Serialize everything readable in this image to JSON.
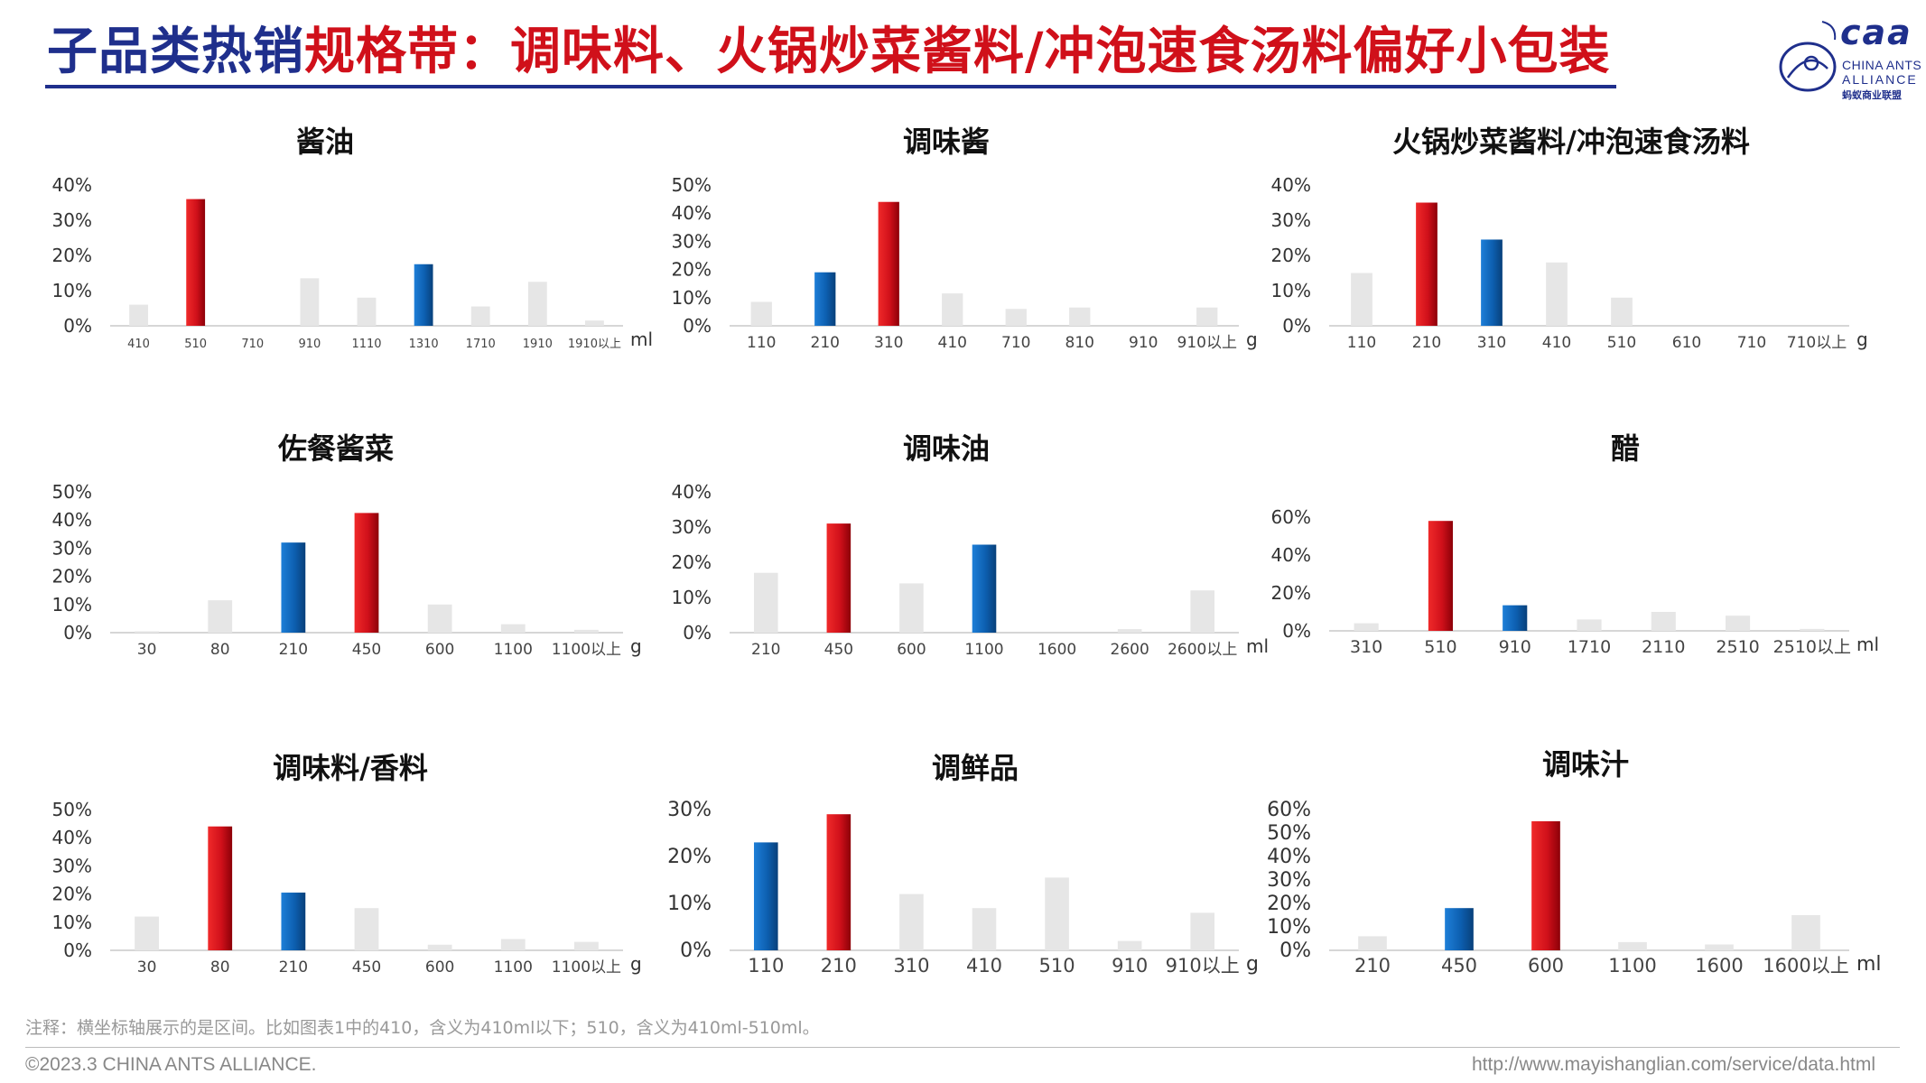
{
  "header": {
    "title_part1": "子品类热销",
    "title_part2": "规格带：调味料、火锅炒菜酱料/冲泡速食汤料偏好小包装"
  },
  "logo": {
    "text_caa": "caa",
    "line1": "CHINA ANTS",
    "line2": "ALLIANCE",
    "line3": "蚂蚁商业联盟"
  },
  "colors": {
    "red": "#d0101a",
    "blue": "#0d5fb0",
    "gray": "#e6e6e6",
    "navy": "#1f2f8c"
  },
  "chart_data": [
    {
      "type": "bar",
      "title": "酱油",
      "unit": "ml",
      "categories": [
        "410",
        "510",
        "710",
        "910",
        "1110",
        "1310",
        "1710",
        "1910",
        "1910以上"
      ],
      "values": [
        6,
        36,
        0,
        13.5,
        8,
        17.5,
        5.5,
        12.5,
        1.5
      ],
      "highlight": [
        "gray",
        "red",
        "gray",
        "gray",
        "gray",
        "blue",
        "gray",
        "gray",
        "gray"
      ],
      "yticks": [
        0,
        10,
        20,
        30,
        40
      ],
      "ylim": [
        0,
        40
      ]
    },
    {
      "type": "bar",
      "title": "调味酱",
      "unit": "g",
      "categories": [
        "110",
        "210",
        "310",
        "410",
        "710",
        "810",
        "910",
        "910以上"
      ],
      "values": [
        8.5,
        19,
        44,
        11.5,
        6,
        6.5,
        0,
        6.5
      ],
      "highlight": [
        "gray",
        "blue",
        "red",
        "gray",
        "gray",
        "gray",
        "gray",
        "gray"
      ],
      "yticks": [
        0,
        10,
        20,
        30,
        40,
        50
      ],
      "ylim": [
        0,
        50
      ]
    },
    {
      "type": "bar",
      "title": "火锅炒菜酱料/冲泡速食汤料",
      "unit": "g",
      "categories": [
        "110",
        "210",
        "310",
        "410",
        "510",
        "610",
        "710",
        "710以上"
      ],
      "values": [
        15,
        35,
        24.5,
        18,
        8,
        0,
        0,
        0
      ],
      "highlight": [
        "gray",
        "red",
        "blue",
        "gray",
        "gray",
        "gray",
        "gray",
        "gray"
      ],
      "yticks": [
        0,
        10,
        20,
        30,
        40
      ],
      "ylim": [
        0,
        40
      ]
    },
    {
      "type": "bar",
      "title": "佐餐酱菜",
      "unit": "g",
      "categories": [
        "30",
        "80",
        "210",
        "450",
        "600",
        "1100",
        "1100以上"
      ],
      "values": [
        0.5,
        11.5,
        32,
        42.5,
        10,
        3,
        1
      ],
      "highlight": [
        "gray",
        "gray",
        "blue",
        "red",
        "gray",
        "gray",
        "gray"
      ],
      "yticks": [
        0,
        10,
        20,
        30,
        40,
        50
      ],
      "ylim": [
        0,
        50
      ]
    },
    {
      "type": "bar",
      "title": "调味油",
      "unit": "ml",
      "categories": [
        "210",
        "450",
        "600",
        "1100",
        "1600",
        "2600",
        "2600以上"
      ],
      "values": [
        17,
        31,
        14,
        25,
        0,
        1,
        12
      ],
      "highlight": [
        "gray",
        "red",
        "gray",
        "blue",
        "gray",
        "gray",
        "gray"
      ],
      "yticks": [
        0,
        10,
        20,
        30,
        40
      ],
      "ylim": [
        0,
        40
      ]
    },
    {
      "type": "bar",
      "title": "醋",
      "unit": "ml",
      "categories": [
        "310",
        "510",
        "910",
        "1710",
        "2110",
        "2510",
        "2510以上"
      ],
      "values": [
        4,
        58,
        13.5,
        6,
        10,
        8,
        1
      ],
      "highlight": [
        "gray",
        "red",
        "blue",
        "gray",
        "gray",
        "gray",
        "gray"
      ],
      "yticks": [
        0,
        20,
        40,
        60
      ],
      "ylim": [
        0,
        60
      ]
    },
    {
      "type": "bar",
      "title": "调味料/香料",
      "unit": "g",
      "categories": [
        "30",
        "80",
        "210",
        "450",
        "600",
        "1100",
        "1100以上"
      ],
      "values": [
        12,
        44,
        20.5,
        15,
        2,
        4,
        3
      ],
      "highlight": [
        "gray",
        "red",
        "blue",
        "gray",
        "gray",
        "gray",
        "gray"
      ],
      "yticks": [
        0,
        10,
        20,
        30,
        40,
        50
      ],
      "ylim": [
        0,
        50
      ]
    },
    {
      "type": "bar",
      "title": "调鲜品",
      "unit": "g",
      "categories": [
        "110",
        "210",
        "310",
        "410",
        "510",
        "910",
        "910以上"
      ],
      "values": [
        23,
        29,
        12,
        9,
        15.5,
        2,
        8
      ],
      "highlight": [
        "blue",
        "red",
        "gray",
        "gray",
        "gray",
        "gray",
        "gray"
      ],
      "yticks": [
        0,
        10,
        20,
        30
      ],
      "ylim": [
        0,
        30
      ]
    },
    {
      "type": "bar",
      "title": "调味汁",
      "unit": "ml",
      "categories": [
        "210",
        "450",
        "600",
        "1100",
        "1600",
        "1600以上"
      ],
      "values": [
        6,
        18,
        55,
        3.5,
        2.5,
        15
      ],
      "highlight": [
        "gray",
        "blue",
        "red",
        "gray",
        "gray",
        "gray"
      ],
      "yticks": [
        0,
        10,
        20,
        30,
        40,
        50,
        60
      ],
      "ylim": [
        0,
        60
      ]
    }
  ],
  "footnote": "注释：横坐标轴展示的是区间。比如图表1中的410，含义为410ml以下；510，含义为410ml-510ml。",
  "footer": {
    "copyright": "©2023.3 CHINA ANTS ALLIANCE.",
    "url": "http://www.mayishanglian.com/service/data.html"
  }
}
